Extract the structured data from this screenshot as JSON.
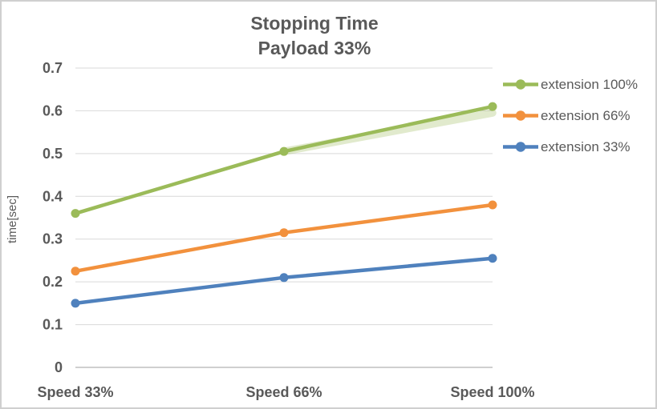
{
  "chart_data": {
    "type": "line",
    "title": "Stopping Time",
    "subtitle": "Payload 33%",
    "categories": [
      "Speed 33%",
      "Speed 66%",
      "Speed 100%"
    ],
    "series": [
      {
        "name": "extension 100%",
        "color": "#9BBB59",
        "values": [
          0.36,
          0.505,
          0.61
        ]
      },
      {
        "name": "extension 66%",
        "color": "#F2913D",
        "values": [
          0.225,
          0.315,
          0.38
        ]
      },
      {
        "name": "extension 33%",
        "color": "#4F81BD",
        "values": [
          0.15,
          0.21,
          0.255
        ]
      }
    ],
    "shadow_series": {
      "name": "highlight-band-behind-green",
      "color": "#9BBB59",
      "opacity": 0.3,
      "width": 9.5,
      "values": [
        null,
        0.505,
        0.595
      ]
    },
    "xlabel": "",
    "ylabel": "time[sec]",
    "ylim": [
      0,
      0.7
    ],
    "ytick_step": 0.1,
    "ytick_labels": [
      "0",
      "0.1",
      "0.2",
      "0.3",
      "0.4",
      "0.5",
      "0.6",
      "0.7"
    ],
    "grid": true,
    "legend_position": "right",
    "marker": "circle"
  },
  "colors": {
    "text": "#595959",
    "gridline": "#D9D9D9",
    "axis_line": "#BFBFBF",
    "background": "#FFFFFF",
    "border": "#CFCFCF"
  }
}
